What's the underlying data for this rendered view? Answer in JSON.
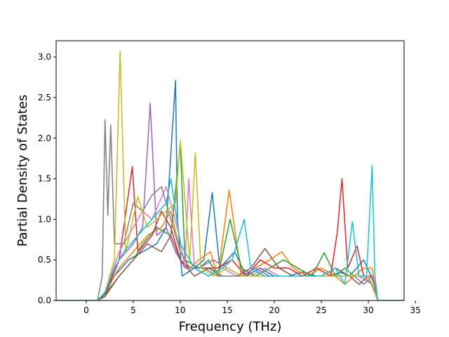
{
  "chart_data": {
    "type": "line",
    "title": "",
    "xlabel": "Frequency (THz)",
    "ylabel": "Partial Density of States",
    "xlim": [
      -3.2,
      33.8
    ],
    "ylim": [
      0.0,
      3.2
    ],
    "xticks": [
      0,
      5,
      10,
      15,
      20,
      25,
      30,
      35
    ],
    "yticks": [
      0.0,
      0.5,
      1.0,
      1.5,
      2.0,
      2.5,
      3.0
    ],
    "xtick_labels": [
      "0",
      "5",
      "10",
      "15",
      "20",
      "25",
      "30",
      "35"
    ],
    "ytick_labels": [
      "0.0",
      "0.5",
      "1.0",
      "1.5",
      "2.0",
      "2.5",
      "3.0"
    ],
    "grid": false,
    "legend": "none",
    "series_count_note": "many overlapping atom-projected curves in default matplotlib color cycle",
    "colors": [
      "#1f77b4",
      "#ff7f0e",
      "#2ca02c",
      "#d62728",
      "#9467bd",
      "#8c564b",
      "#e377c2",
      "#7f7f7f",
      "#bcbd22",
      "#17becf"
    ],
    "series": [
      {
        "color": "#1f77b4",
        "x": [
          -3.2,
          1.2,
          1.8,
          3.0,
          4.5,
          6.0,
          7.5,
          8.5,
          9.5,
          9.7,
          10.2,
          11.5,
          12.5,
          13.4,
          14.2,
          15.8,
          17.0,
          18.5,
          20.0,
          21.5,
          23.0,
          24.5,
          26.0,
          27.0,
          28.0,
          29.5,
          30.3,
          30.6,
          31.0,
          33.8
        ],
        "y": [
          0,
          0,
          0.05,
          0.3,
          0.5,
          0.6,
          0.7,
          0.9,
          2.71,
          1.0,
          0.3,
          0.4,
          0.5,
          1.33,
          0.4,
          0.6,
          0.3,
          0.4,
          0.3,
          0.3,
          0.35,
          0.3,
          0.3,
          0.35,
          0.3,
          0.5,
          0.3,
          0.2,
          0,
          0
        ]
      },
      {
        "color": "#ff7f0e",
        "x": [
          -3.2,
          1.2,
          2.0,
          3.5,
          5.0,
          6.5,
          8.0,
          9.0,
          10.0,
          11.0,
          12.0,
          13.2,
          14.0,
          15.2,
          16.5,
          18.0,
          19.5,
          20.8,
          22.0,
          23.5,
          25.0,
          26.5,
          27.5,
          28.5,
          29.5,
          30.4,
          31.0,
          33.8
        ],
        "y": [
          0,
          0,
          0.1,
          0.4,
          0.6,
          0.8,
          0.9,
          1.1,
          0.6,
          0.4,
          0.5,
          0.6,
          0.3,
          1.36,
          0.3,
          0.4,
          0.5,
          0.6,
          0.4,
          0.3,
          0.4,
          0.3,
          0.2,
          0.3,
          0.4,
          0.4,
          0,
          0
        ]
      },
      {
        "color": "#2ca02c",
        "x": [
          -3.2,
          1.2,
          2.0,
          3.5,
          5.0,
          6.0,
          7.5,
          9.0,
          10.0,
          10.5,
          12.0,
          13.0,
          14.0,
          15.3,
          16.5,
          18.0,
          19.5,
          21.0,
          22.5,
          24.0,
          25.3,
          26.5,
          27.5,
          28.5,
          29.5,
          30.4,
          31.0,
          33.8
        ],
        "y": [
          0,
          0,
          0.08,
          0.3,
          0.5,
          0.7,
          0.9,
          0.8,
          1.92,
          0.5,
          0.4,
          0.5,
          0.3,
          1.0,
          0.4,
          0.3,
          0.4,
          0.5,
          0.4,
          0.3,
          0.59,
          0.3,
          0.4,
          0.3,
          0.3,
          0.2,
          0,
          0
        ]
      },
      {
        "color": "#d62728",
        "x": [
          -3.2,
          1.2,
          2.0,
          3.5,
          4.9,
          5.5,
          7.0,
          8.0,
          9.0,
          10.0,
          11.0,
          12.5,
          14.0,
          15.5,
          17.0,
          18.5,
          20.0,
          21.5,
          23.0,
          24.5,
          26.0,
          26.7,
          27.2,
          27.8,
          28.8,
          29.5,
          30.4,
          31.0,
          33.8
        ],
        "y": [
          0,
          0,
          0.05,
          0.5,
          1.65,
          0.6,
          0.8,
          1.1,
          0.9,
          0.5,
          0.4,
          0.4,
          0.4,
          0.5,
          0.3,
          0.5,
          0.4,
          0.4,
          0.3,
          0.4,
          0.3,
          0.84,
          1.5,
          0.4,
          0.67,
          0.3,
          0.3,
          0,
          0
        ]
      },
      {
        "color": "#9467bd",
        "x": [
          -3.2,
          1.2,
          2.0,
          3.5,
          5.0,
          6.0,
          6.8,
          7.5,
          8.5,
          9.5,
          10.5,
          12.0,
          13.5,
          15.0,
          16.5,
          18.0,
          19.5,
          21.0,
          22.5,
          24.0,
          25.5,
          27.0,
          28.5,
          29.5,
          30.4,
          31.0,
          33.8
        ],
        "y": [
          0,
          0,
          0.1,
          0.5,
          0.7,
          0.9,
          2.43,
          0.8,
          0.9,
          0.6,
          0.4,
          0.4,
          0.5,
          0.4,
          0.3,
          0.4,
          0.3,
          0.3,
          0.3,
          0.3,
          0.3,
          0.3,
          0.3,
          0.2,
          0.3,
          0,
          0
        ]
      },
      {
        "color": "#8c564b",
        "x": [
          -3.2,
          1.2,
          2.0,
          3.5,
          5.0,
          6.5,
          8.0,
          9.0,
          10.0,
          11.5,
          13.0,
          14.5,
          16.0,
          17.5,
          19.0,
          20.5,
          22.0,
          23.5,
          25.0,
          26.5,
          28.0,
          29.0,
          30.0,
          31.0,
          33.8
        ],
        "y": [
          0,
          0,
          0.05,
          0.3,
          0.5,
          0.7,
          0.6,
          0.8,
          0.5,
          0.3,
          0.4,
          0.3,
          0.3,
          0.4,
          0.64,
          0.4,
          0.3,
          0.3,
          0.3,
          0.4,
          0.3,
          0.2,
          0.3,
          0,
          0
        ]
      },
      {
        "color": "#e377c2",
        "x": [
          -3.2,
          1.2,
          2.0,
          3.5,
          5.0,
          6.0,
          7.0,
          8.5,
          9.0,
          9.9,
          10.5,
          10.9,
          11.5,
          13.0,
          14.5,
          16.0,
          17.5,
          19.0,
          20.5,
          22.0,
          23.5,
          25.0,
          26.5,
          28.0,
          29.5,
          30.4,
          31.0,
          33.8
        ],
        "y": [
          0,
          0,
          0.1,
          0.6,
          0.9,
          1.1,
          1.0,
          1.4,
          1.2,
          0.8,
          0.4,
          1.5,
          0.4,
          0.3,
          0.4,
          0.3,
          0.3,
          0.4,
          0.3,
          0.3,
          0.3,
          0.3,
          0.3,
          0.3,
          0.3,
          0.2,
          0,
          0
        ]
      },
      {
        "color": "#7f7f7f",
        "x": [
          -3.2,
          1.2,
          1.7,
          2.0,
          2.3,
          2.6,
          3.0,
          4.0,
          5.0,
          6.0,
          7.0,
          8.0,
          9.0,
          10.0,
          11.0,
          12.5,
          14.0,
          15.5,
          17.0,
          18.5,
          20.0,
          21.5,
          23.0,
          24.5,
          26.0,
          27.5,
          29.0,
          30.4,
          31.0,
          33.8
        ],
        "y": [
          0,
          0,
          0.3,
          2.23,
          1.05,
          2.16,
          0.7,
          0.7,
          1.2,
          1.1,
          1.3,
          1.4,
          1.0,
          0.6,
          0.4,
          0.4,
          0.3,
          0.3,
          0.3,
          0.3,
          0.3,
          0.3,
          0.3,
          0.3,
          0.3,
          0.3,
          0.3,
          0.2,
          0,
          0
        ]
      },
      {
        "color": "#bcbd22",
        "x": [
          -3.2,
          1.2,
          2.0,
          3.0,
          3.6,
          4.2,
          5.5,
          6.5,
          7.5,
          8.5,
          9.5,
          10.0,
          11.0,
          11.6,
          12.2,
          13.5,
          15.0,
          16.5,
          18.0,
          19.5,
          21.0,
          22.5,
          24.0,
          25.5,
          27.0,
          28.5,
          30.0,
          30.4,
          31.0,
          33.8
        ],
        "y": [
          0,
          0,
          0.1,
          0.5,
          3.07,
          0.6,
          1.28,
          0.9,
          1.0,
          1.1,
          1.2,
          1.97,
          0.5,
          1.82,
          0.4,
          0.3,
          0.4,
          0.3,
          0.3,
          0.3,
          0.3,
          0.3,
          0.3,
          0.3,
          0.3,
          0.3,
          0.3,
          0.2,
          0,
          0
        ]
      },
      {
        "color": "#17becf",
        "x": [
          -3.2,
          1.2,
          2.0,
          3.0,
          4.0,
          5.5,
          7.0,
          8.5,
          9.0,
          10.0,
          11.5,
          13.0,
          14.5,
          15.5,
          16.8,
          17.5,
          19.0,
          20.5,
          22.0,
          23.5,
          25.0,
          26.5,
          27.5,
          28.3,
          29.0,
          29.8,
          30.4,
          30.7,
          31.0,
          33.8
        ],
        "y": [
          0,
          0,
          0.1,
          0.4,
          0.6,
          0.8,
          1.0,
          1.2,
          1.5,
          0.7,
          0.4,
          0.3,
          0.4,
          0.5,
          1.0,
          0.4,
          0.3,
          0.3,
          0.3,
          0.3,
          0.3,
          0.4,
          0.2,
          0.97,
          0.3,
          0.3,
          1.66,
          0.3,
          0,
          0
        ]
      }
    ]
  }
}
